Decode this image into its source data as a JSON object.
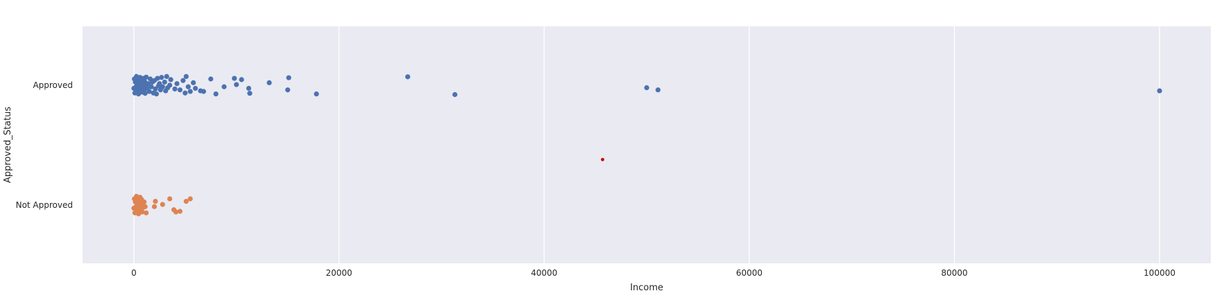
{
  "chart_data": {
    "type": "scatter",
    "subtype": "strip",
    "title": "",
    "xlabel": "Income",
    "ylabel": "Approved_Status",
    "xlim": [
      -5000,
      105000
    ],
    "xticks": [
      0,
      20000,
      40000,
      60000,
      80000,
      100000
    ],
    "xtick_labels": [
      "0",
      "20000",
      "40000",
      "60000",
      "80000",
      "100000"
    ],
    "categories": [
      "Approved",
      "Not Approved"
    ],
    "grid": true,
    "colors": {
      "background": "#eaeaf2",
      "grid": "#ffffff",
      "Approved": "#4c72b0",
      "Not Approved": "#dd8452",
      "marker": "#cc0000"
    },
    "series": [
      {
        "category": "Approved",
        "points": [
          [
            0,
            0.1
          ],
          [
            50,
            -0.2
          ],
          [
            100,
            0.25
          ],
          [
            150,
            -0.1
          ],
          [
            200,
            0.05
          ],
          [
            250,
            -0.28
          ],
          [
            300,
            0.2
          ],
          [
            350,
            0.0
          ],
          [
            400,
            -0.15
          ],
          [
            450,
            0.28
          ],
          [
            500,
            -0.05
          ],
          [
            550,
            0.12
          ],
          [
            600,
            -0.25
          ],
          [
            650,
            0.18
          ],
          [
            700,
            0.02
          ],
          [
            750,
            -0.18
          ],
          [
            800,
            0.22
          ],
          [
            850,
            -0.08
          ],
          [
            900,
            0.08
          ],
          [
            950,
            -0.22
          ],
          [
            1000,
            0.15
          ],
          [
            1050,
            -0.12
          ],
          [
            1100,
            0.26
          ],
          [
            1150,
            0.0
          ],
          [
            1200,
            -0.26
          ],
          [
            1300,
            0.1
          ],
          [
            1400,
            -0.05
          ],
          [
            1500,
            0.2
          ],
          [
            1600,
            -0.2
          ],
          [
            1700,
            0.05
          ],
          [
            1800,
            -0.1
          ],
          [
            1900,
            0.25
          ],
          [
            2000,
            -0.15
          ],
          [
            2100,
            0.12
          ],
          [
            2200,
            0.28
          ],
          [
            2300,
            -0.22
          ],
          [
            2400,
            0.02
          ],
          [
            2500,
            -0.05
          ],
          [
            2600,
            0.15
          ],
          [
            2700,
            -0.25
          ],
          [
            2800,
            0.05
          ],
          [
            3000,
            -0.1
          ],
          [
            3100,
            0.18
          ],
          [
            3200,
            -0.28
          ],
          [
            3300,
            0.08
          ],
          [
            3500,
            0.0
          ],
          [
            3600,
            -0.18
          ],
          [
            4000,
            0.12
          ],
          [
            4200,
            -0.05
          ],
          [
            4500,
            0.15
          ],
          [
            4800,
            -0.15
          ],
          [
            5000,
            0.25
          ],
          [
            5100,
            -0.28
          ],
          [
            5300,
            0.05
          ],
          [
            5500,
            0.2
          ],
          [
            5800,
            -0.08
          ],
          [
            6000,
            0.1
          ],
          [
            6500,
            0.18
          ],
          [
            6800,
            0.2
          ],
          [
            7500,
            -0.2
          ],
          [
            8000,
            0.28
          ],
          [
            8800,
            0.05
          ],
          [
            9800,
            -0.22
          ],
          [
            10000,
            -0.02
          ],
          [
            10500,
            -0.18
          ],
          [
            11200,
            0.1
          ],
          [
            11300,
            0.26
          ],
          [
            13200,
            -0.08
          ],
          [
            15000,
            0.15
          ],
          [
            15100,
            -0.24
          ],
          [
            17800,
            0.28
          ],
          [
            26700,
            -0.27
          ],
          [
            31300,
            0.3
          ],
          [
            50000,
            0.08
          ],
          [
            51100,
            0.15
          ],
          [
            100000,
            0.18
          ]
        ]
      },
      {
        "category": "Not Approved",
        "points": [
          [
            0,
            0.1
          ],
          [
            50,
            -0.2
          ],
          [
            100,
            0.25
          ],
          [
            150,
            -0.1
          ],
          [
            200,
            0.05
          ],
          [
            250,
            -0.28
          ],
          [
            300,
            0.18
          ],
          [
            350,
            0.0
          ],
          [
            400,
            -0.15
          ],
          [
            450,
            0.28
          ],
          [
            500,
            -0.05
          ],
          [
            550,
            0.12
          ],
          [
            600,
            -0.25
          ],
          [
            650,
            0.2
          ],
          [
            700,
            0.02
          ],
          [
            750,
            -0.18
          ],
          [
            800,
            0.22
          ],
          [
            850,
            -0.08
          ],
          [
            900,
            0.08
          ],
          [
            1000,
            -0.1
          ],
          [
            1100,
            0.05
          ],
          [
            1200,
            0.25
          ],
          [
            2000,
            0.05
          ],
          [
            2100,
            -0.12
          ],
          [
            2800,
            -0.02
          ],
          [
            3500,
            -0.2
          ],
          [
            3900,
            0.15
          ],
          [
            4100,
            0.22
          ],
          [
            4500,
            0.2
          ],
          [
            5100,
            -0.12
          ],
          [
            5500,
            -0.2
          ]
        ]
      }
    ],
    "annotations": [
      {
        "type": "marker",
        "x": 45700,
        "y": 0.62,
        "color": "#cc0000"
      }
    ]
  }
}
